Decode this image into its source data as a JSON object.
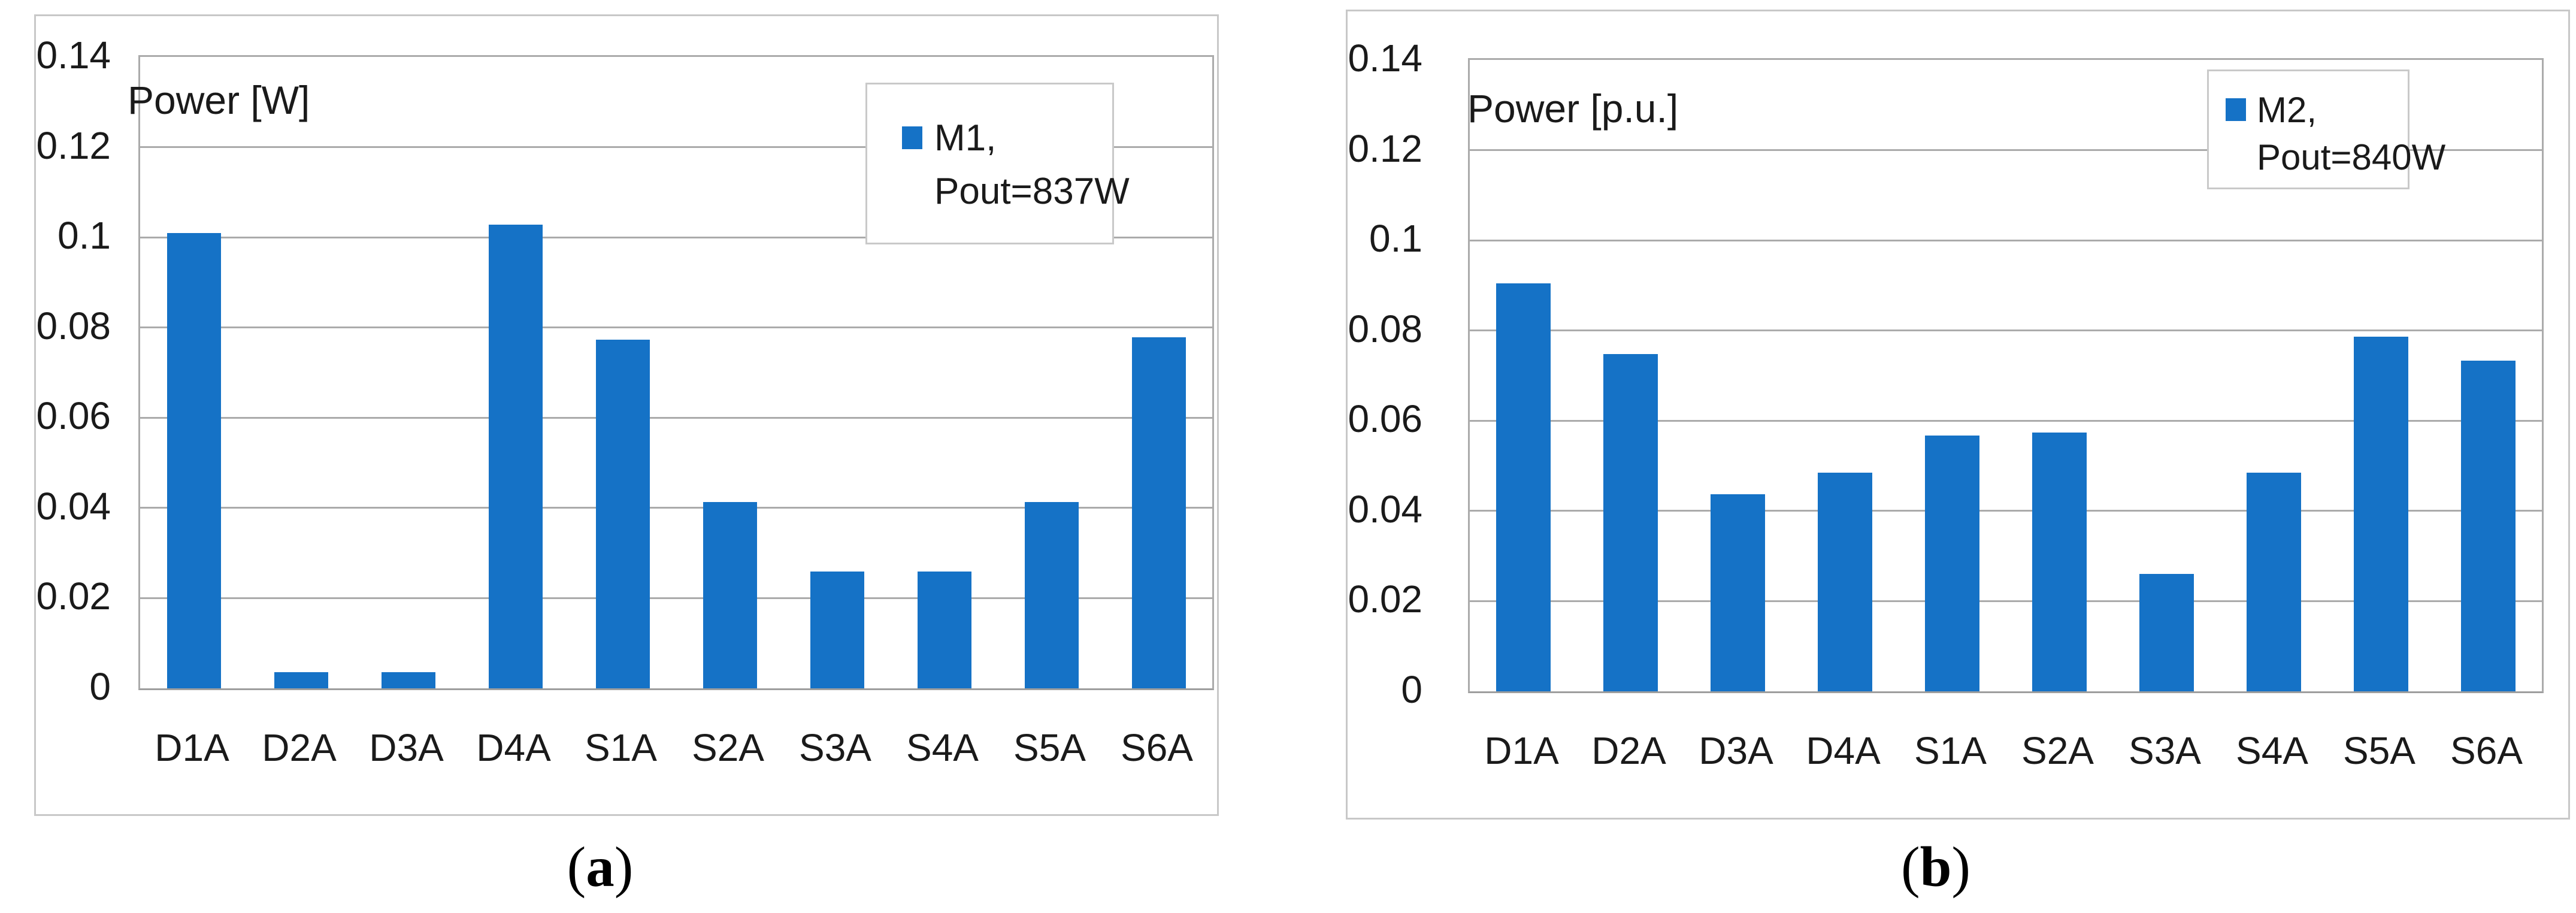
{
  "figure": {
    "captions": {
      "a": {
        "open": "(",
        "letter": "a",
        "close": ")"
      },
      "b": {
        "open": "(",
        "letter": "b",
        "close": ")"
      }
    }
  },
  "colors": {
    "bar": "#1572C6",
    "gridline": "#ABABAB",
    "plot_border": "#ABABAB",
    "axis_line": "#9E9E9E",
    "frame_border": "#C8C8C8",
    "legend_border": "#C9C9C9",
    "text": "#1A1A1A"
  },
  "chart_data": [
    {
      "id": "a",
      "type": "bar",
      "title": "Power [W]",
      "ylabel": "Power [W]",
      "xlabel": "",
      "legend": {
        "lines": [
          "M1,",
          "Pout=837W"
        ],
        "position": "top-right",
        "marker_color": "#1572C6"
      },
      "categories": [
        "D1A",
        "D2A",
        "D3A",
        "D4A",
        "S1A",
        "S2A",
        "S3A",
        "S4A",
        "S5A",
        "S6A"
      ],
      "values": [
        0.101,
        0.0036,
        0.0036,
        0.1028,
        0.0773,
        0.0413,
        0.0259,
        0.0259,
        0.0413,
        0.0778
      ],
      "ylim": [
        0,
        0.14
      ],
      "ytick_labels": [
        "0",
        "0.02",
        "0.04",
        "0.06",
        "0.08",
        "0.1",
        "0.12",
        "0.14"
      ],
      "grid": true
    },
    {
      "id": "b",
      "type": "bar",
      "title": "Power [p.u.]",
      "ylabel": "Power [p.u.]",
      "xlabel": "",
      "legend": {
        "lines": [
          "M2,",
          "Pout=840W"
        ],
        "position": "top-right",
        "marker_color": "#1572C6"
      },
      "categories": [
        "D1A",
        "D2A",
        "D3A",
        "D4A",
        "S1A",
        "S2A",
        "S3A",
        "S4A",
        "S5A",
        "S6A"
      ],
      "values": [
        0.0905,
        0.0748,
        0.0437,
        0.0485,
        0.0567,
        0.0574,
        0.026,
        0.0485,
        0.0787,
        0.0733
      ],
      "ylim": [
        0,
        0.14
      ],
      "ytick_labels": [
        "0",
        "0.02",
        "0.04",
        "0.06",
        "0.08",
        "0.1",
        "0.12",
        "0.14"
      ],
      "grid": true
    }
  ]
}
